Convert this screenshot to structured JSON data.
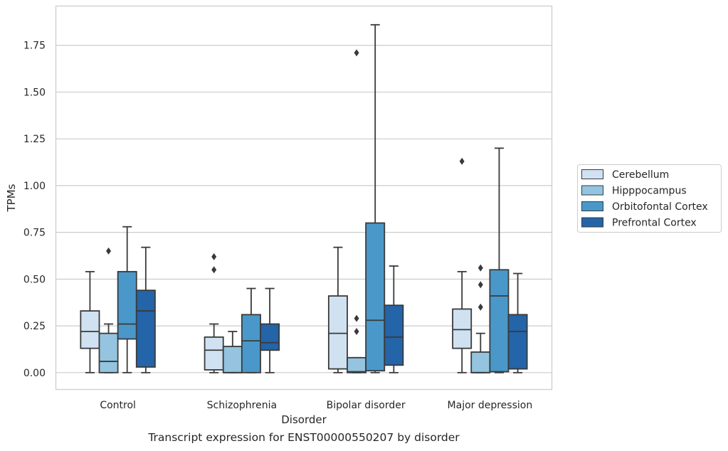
{
  "caption": "Transcript expression for ENST00000550207 by disorder",
  "chart_data": {
    "type": "box",
    "xlabel": "Disorder",
    "ylabel": "TPMs",
    "ylim": [
      -0.09,
      1.96
    ],
    "yticks": [
      "0.00",
      "0.25",
      "0.50",
      "0.75",
      "1.00",
      "1.25",
      "1.50",
      "1.75"
    ],
    "ytick_values": [
      0,
      0.25,
      0.5,
      0.75,
      1.0,
      1.25,
      1.5,
      1.75
    ],
    "grid": "horizontal",
    "legend_position": "right",
    "categories": [
      "Control",
      "Schizophrenia",
      "Bipolar disorder",
      "Major depression"
    ],
    "series": [
      {
        "name": "Cerebellum",
        "color": "#d0e1f2",
        "boxes": [
          {
            "whisker_low": 0.0,
            "q1": 0.13,
            "median": 0.22,
            "q3": 0.33,
            "whisker_high": 0.54,
            "outliers": []
          },
          {
            "whisker_low": 0.0,
            "q1": 0.015,
            "median": 0.12,
            "q3": 0.19,
            "whisker_high": 0.26,
            "outliers": [
              0.55,
              0.62
            ]
          },
          {
            "whisker_low": 0.0,
            "q1": 0.02,
            "median": 0.21,
            "q3": 0.41,
            "whisker_high": 0.67,
            "outliers": []
          },
          {
            "whisker_low": 0.0,
            "q1": 0.13,
            "median": 0.23,
            "q3": 0.34,
            "whisker_high": 0.54,
            "outliers": [
              1.13
            ]
          }
        ]
      },
      {
        "name": "Hipppocampus",
        "color": "#94c4df",
        "boxes": [
          {
            "whisker_low": 0.0,
            "q1": 0.0,
            "median": 0.06,
            "q3": 0.21,
            "whisker_high": 0.26,
            "outliers": [
              0.65
            ]
          },
          {
            "whisker_low": 0.0,
            "q1": 0.0,
            "median": 0.0,
            "q3": 0.14,
            "whisker_high": 0.22,
            "outliers": []
          },
          {
            "whisker_low": 0.0,
            "q1": 0.0,
            "median": 0.005,
            "q3": 0.08,
            "whisker_high": 0.08,
            "outliers": [
              0.22,
              0.29,
              1.71
            ]
          },
          {
            "whisker_low": 0.0,
            "q1": 0.0,
            "median": 0.0,
            "q3": 0.11,
            "whisker_high": 0.21,
            "outliers": [
              0.35,
              0.47,
              0.56
            ]
          }
        ]
      },
      {
        "name": "Orbitofontal Cortex",
        "color": "#4a98c9",
        "boxes": [
          {
            "whisker_low": 0.0,
            "q1": 0.18,
            "median": 0.26,
            "q3": 0.54,
            "whisker_high": 0.78,
            "outliers": []
          },
          {
            "whisker_low": 0.0,
            "q1": 0.0,
            "median": 0.17,
            "q3": 0.31,
            "whisker_high": 0.45,
            "outliers": []
          },
          {
            "whisker_low": 0.0,
            "q1": 0.01,
            "median": 0.28,
            "q3": 0.8,
            "whisker_high": 1.86,
            "outliers": []
          },
          {
            "whisker_low": 0.0,
            "q1": 0.005,
            "median": 0.41,
            "q3": 0.55,
            "whisker_high": 1.2,
            "outliers": []
          }
        ]
      },
      {
        "name": "Prefrontal Cortex",
        "color": "#2464a8",
        "boxes": [
          {
            "whisker_low": 0.0,
            "q1": 0.03,
            "median": 0.33,
            "q3": 0.44,
            "whisker_high": 0.67,
            "outliers": []
          },
          {
            "whisker_low": 0.0,
            "q1": 0.12,
            "median": 0.16,
            "q3": 0.26,
            "whisker_high": 0.45,
            "outliers": []
          },
          {
            "whisker_low": 0.0,
            "q1": 0.04,
            "median": 0.19,
            "q3": 0.36,
            "whisker_high": 0.57,
            "outliers": []
          },
          {
            "whisker_low": 0.0,
            "q1": 0.02,
            "median": 0.22,
            "q3": 0.31,
            "whisker_high": 0.53,
            "outliers": []
          }
        ]
      }
    ]
  }
}
